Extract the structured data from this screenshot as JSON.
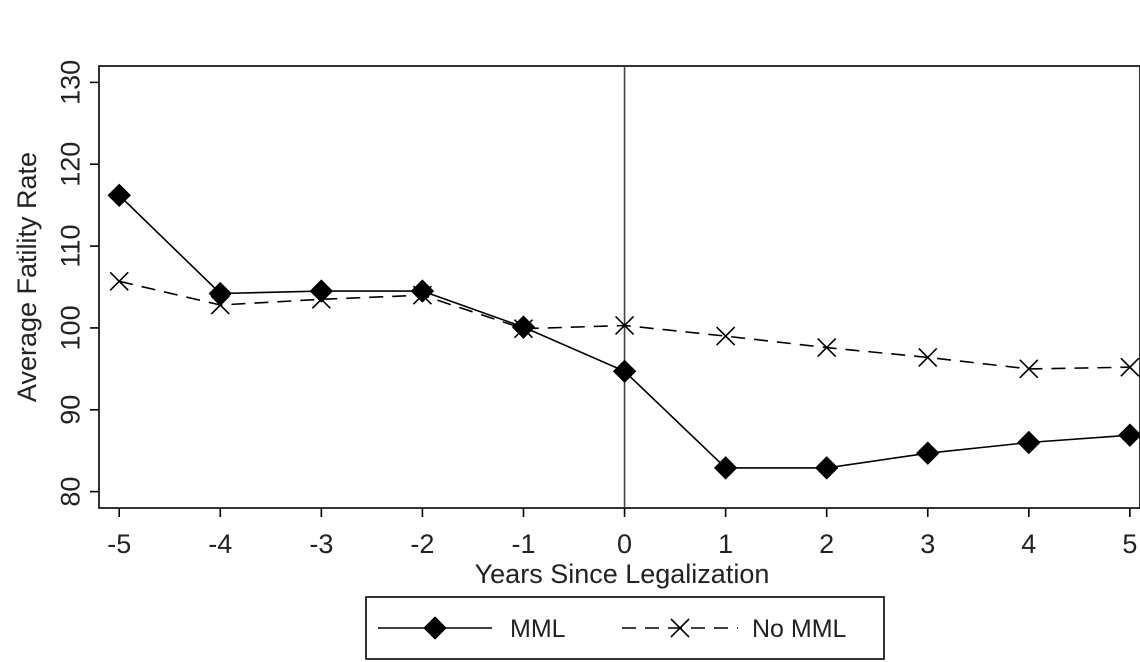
{
  "chart_data": {
    "type": "line",
    "title": "",
    "xlabel": "Years Since Legalization",
    "ylabel": "Average Fatility Rate",
    "x": [
      -5,
      -4,
      -3,
      -2,
      -1,
      0,
      1,
      2,
      3,
      4,
      5
    ],
    "xticks": [
      "-5",
      "-4",
      "-3",
      "-2",
      "-1",
      "0",
      "1",
      "2",
      "3",
      "4",
      "5"
    ],
    "yticks": [
      "80",
      "90",
      "100",
      "110",
      "120",
      "130"
    ],
    "xlim": [
      -5.2,
      5.1
    ],
    "ylim": [
      78,
      132
    ],
    "grid": false,
    "reference_line_x": 0,
    "legend_position": "bottom-center",
    "series": [
      {
        "name": "MML",
        "style": "solid",
        "marker": "diamond",
        "color": "#000000",
        "values": [
          116.2,
          104.2,
          104.5,
          104.5,
          100.1,
          94.7,
          82.9,
          82.9,
          84.7,
          86.0,
          86.9
        ]
      },
      {
        "name": "No MML",
        "style": "dashed",
        "marker": "x",
        "color": "#000000",
        "values": [
          105.7,
          102.8,
          103.5,
          104.0,
          99.9,
          100.3,
          99.0,
          97.6,
          96.4,
          95.0,
          95.2
        ]
      }
    ]
  }
}
